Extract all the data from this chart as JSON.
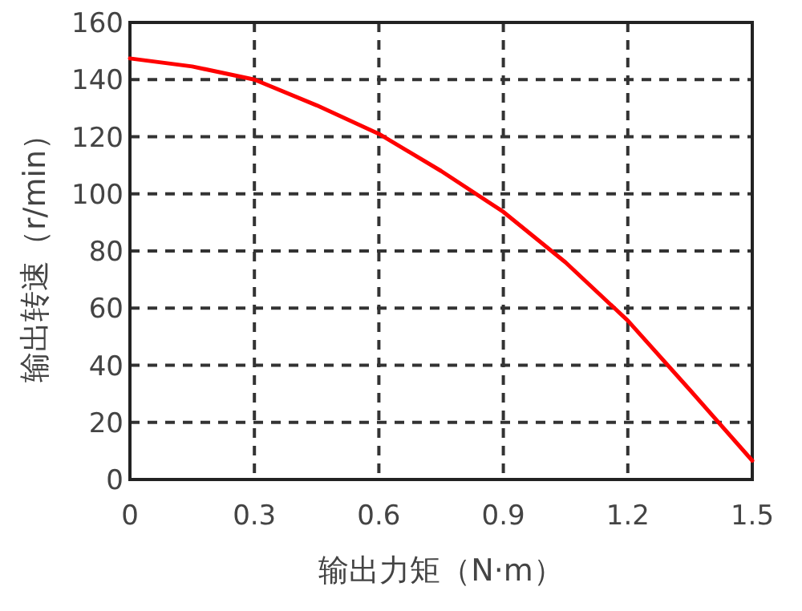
{
  "chart_data": {
    "type": "line",
    "xlabel": "输出力矩（N·m）",
    "ylabel": "输出转速（r/min）",
    "x": [
      0,
      0.15,
      0.3,
      0.45,
      0.6,
      0.75,
      0.9,
      1.05,
      1.2,
      1.35,
      1.5
    ],
    "series": [
      {
        "color": "#ff0000",
        "values": [
          147.4,
          144.6,
          140,
          131,
          121,
          108,
          93.7,
          76,
          55.6,
          31.3,
          6.6
        ]
      }
    ],
    "xlim": [
      0,
      1.5
    ],
    "ylim": [
      0,
      160
    ],
    "xticks": [
      0,
      0.3,
      0.6,
      0.9,
      1.2,
      1.5
    ],
    "yticks": [
      0,
      20,
      40,
      60,
      80,
      100,
      120,
      140,
      160
    ],
    "grid": true,
    "marker": "none",
    "line_style": "solid"
  }
}
